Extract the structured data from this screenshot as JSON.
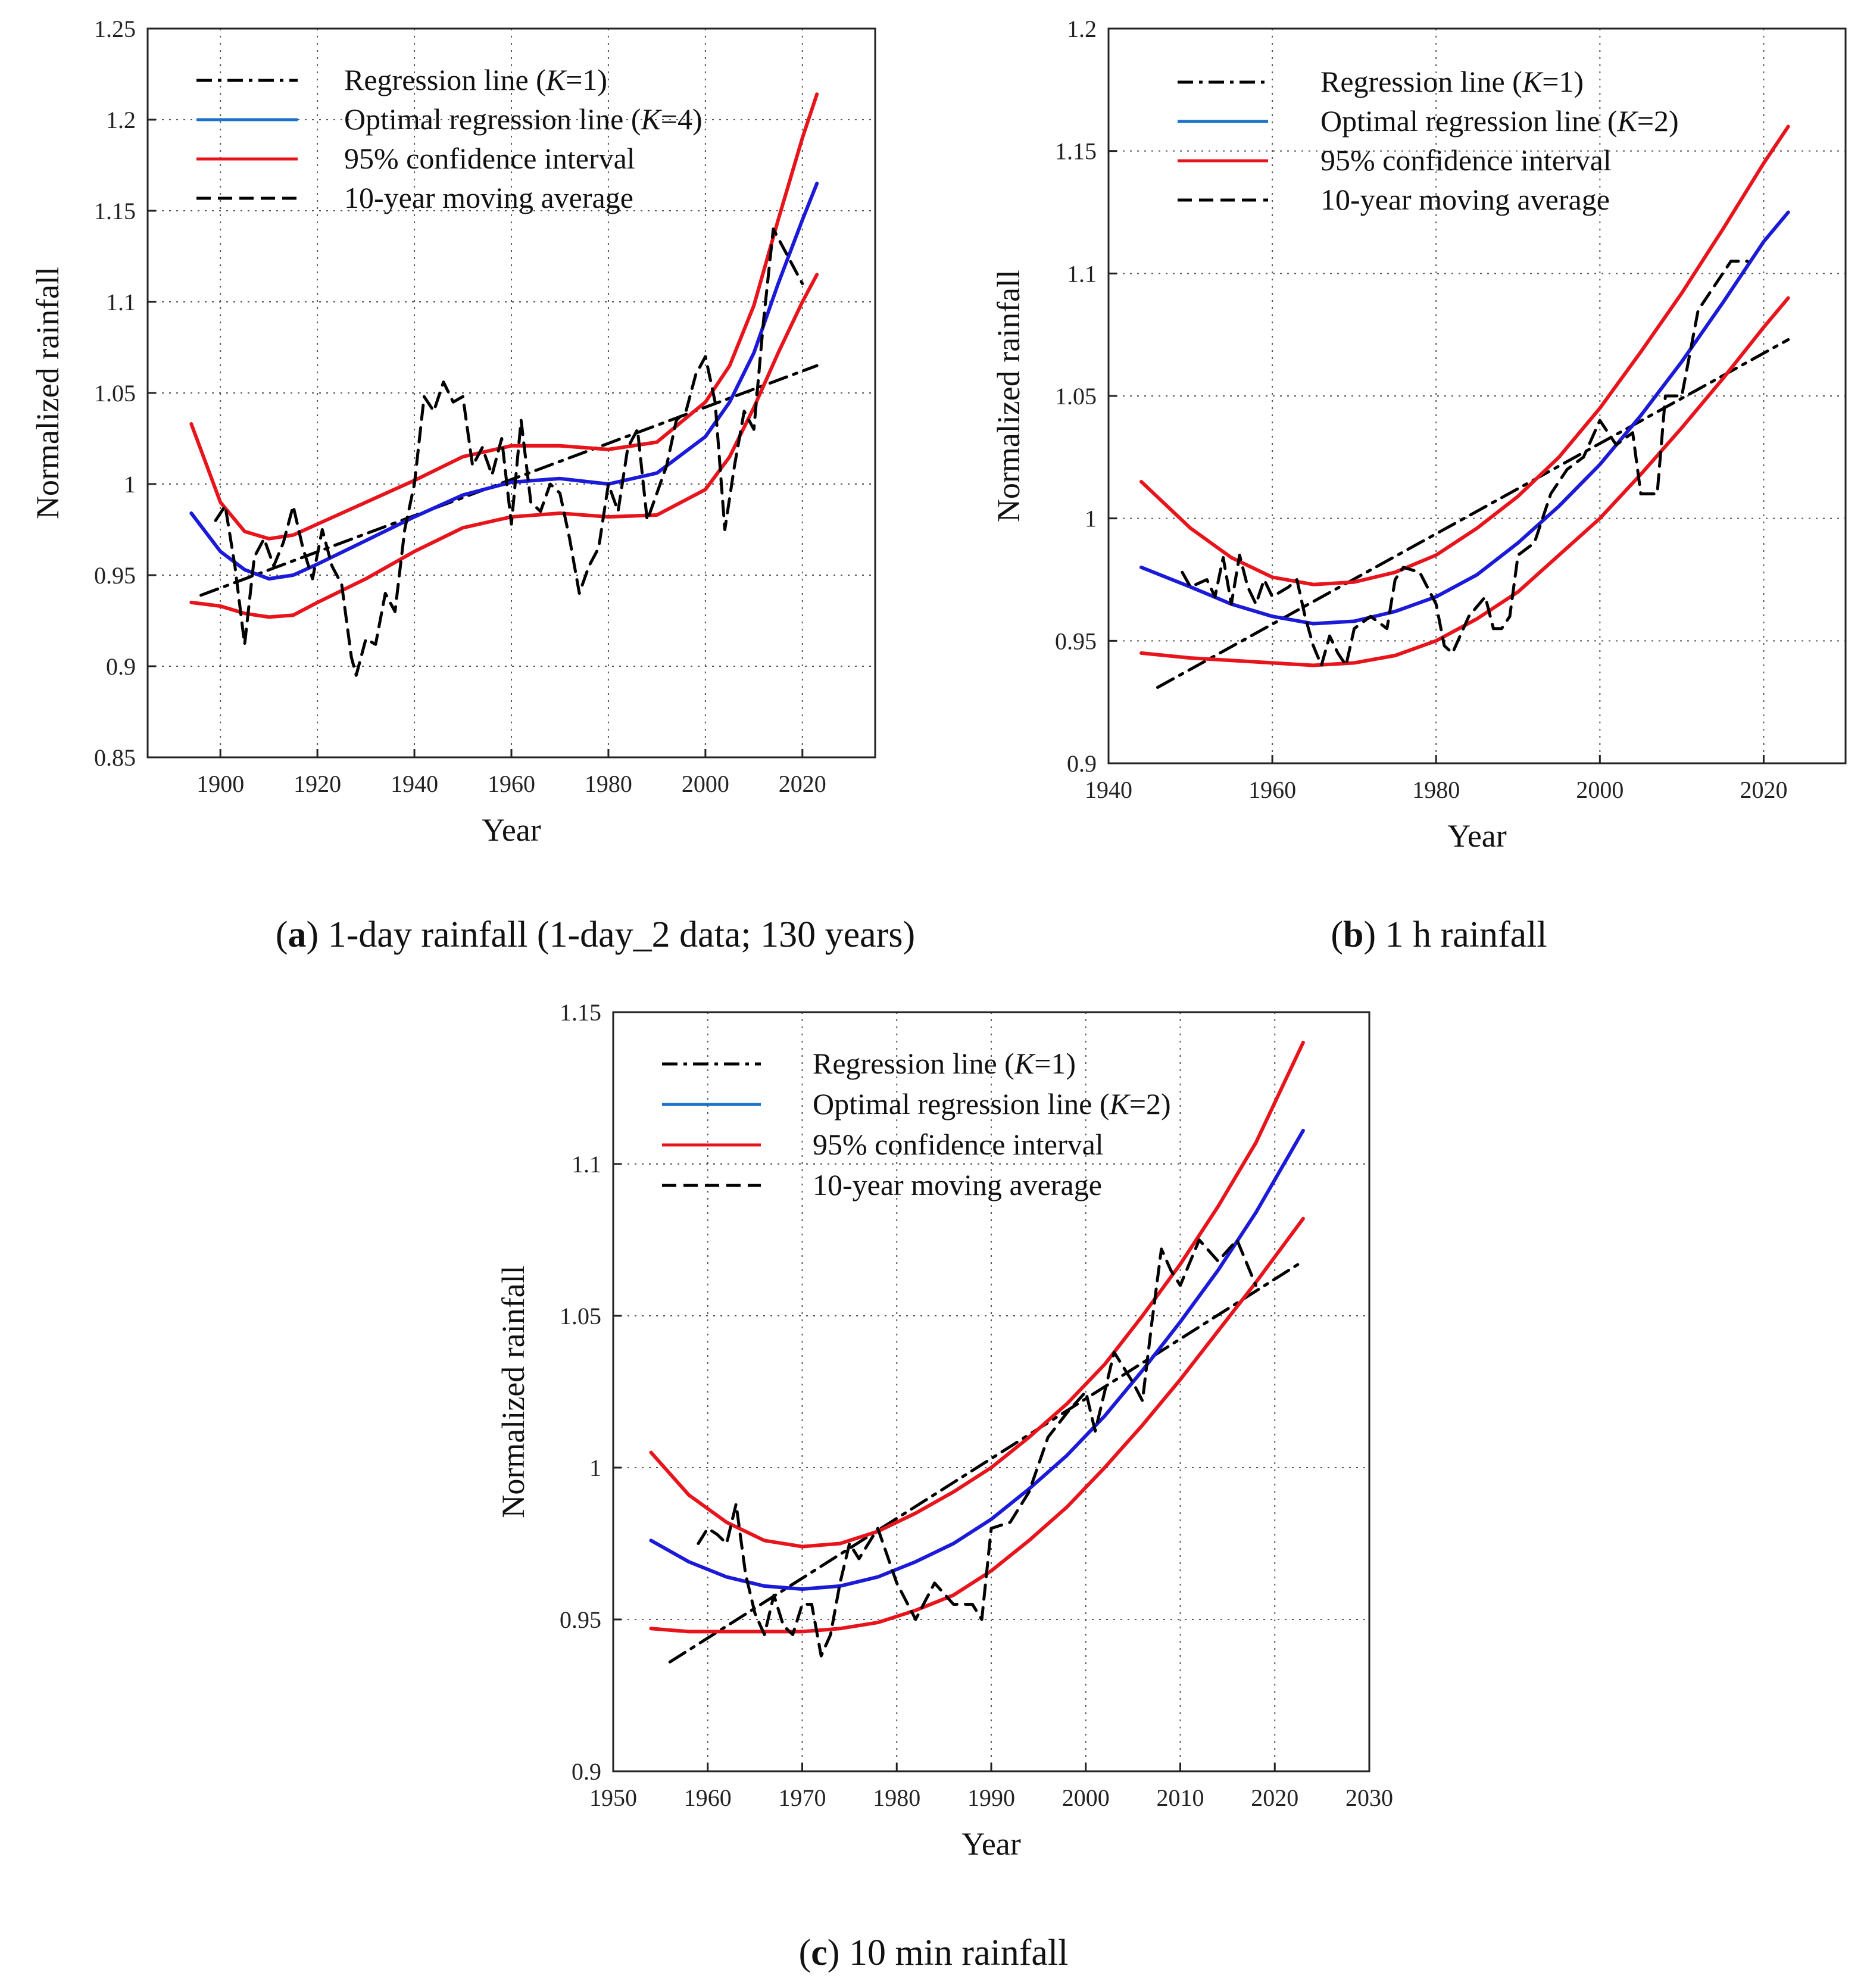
{
  "chart_data": [
    {
      "id": "a",
      "type": "line",
      "caption_letter": "a",
      "caption_rest": " 1-day rainfall (1-day_2 data; 130 years)",
      "xlabel": "Year",
      "ylabel": "Normalized rainfall",
      "xlim": [
        1885,
        2035
      ],
      "ylim": [
        0.85,
        1.25
      ],
      "xticks": [
        1900,
        1920,
        1940,
        1960,
        1980,
        2000,
        2020
      ],
      "yticks": [
        0.85,
        0.9,
        0.95,
        1,
        1.05,
        1.1,
        1.15,
        1.2,
        1.25
      ],
      "ytick_labels": [
        "0.85",
        "0.9",
        "0.95",
        "1",
        "1.05",
        "1.1",
        "1.15",
        "1.2",
        "1.25"
      ],
      "grid": true,
      "legend": [
        {
          "pre": "Regression line (",
          "k": "K",
          "post": "=1)",
          "style": "dashdot",
          "color": "#000000"
        },
        {
          "pre": "Optimal regression line (",
          "k": "K",
          "post": "=4)",
          "style": "solid",
          "color": "#1a73c8"
        },
        {
          "pre": "95% confidence interval",
          "k": "",
          "post": "",
          "style": "solid",
          "color": "#e8141c"
        },
        {
          "pre": "10-year moving average",
          "k": "",
          "post": "",
          "style": "dashed",
          "color": "#000000"
        }
      ],
      "series": [
        {
          "name": "Regression line (K=1)",
          "style": "dashdot",
          "color": "#000000",
          "x": [
            1896,
            2023
          ],
          "y": [
            0.939,
            1.065
          ]
        },
        {
          "name": "Optimal regression line (K=4)",
          "style": "solid",
          "color": "#1a1ad8",
          "x": [
            1894,
            1900,
            1905,
            1910,
            1915,
            1920,
            1930,
            1940,
            1950,
            1960,
            1970,
            1980,
            1990,
            2000,
            2005,
            2010,
            2015,
            2020,
            2023
          ],
          "y": [
            0.984,
            0.963,
            0.953,
            0.948,
            0.95,
            0.956,
            0.969,
            0.982,
            0.994,
            1.001,
            1.003,
            1.0,
            1.006,
            1.026,
            1.045,
            1.072,
            1.11,
            1.145,
            1.165
          ]
        },
        {
          "name": "95% confidence interval upper",
          "style": "solid",
          "color": "#e8141c",
          "x": [
            1894,
            1900,
            1905,
            1910,
            1915,
            1920,
            1930,
            1940,
            1950,
            1960,
            1970,
            1980,
            1990,
            2000,
            2005,
            2010,
            2015,
            2020,
            2023
          ],
          "y": [
            1.033,
            0.99,
            0.974,
            0.97,
            0.972,
            0.978,
            0.99,
            1.002,
            1.015,
            1.021,
            1.021,
            1.019,
            1.023,
            1.045,
            1.065,
            1.098,
            1.145,
            1.19,
            1.214
          ]
        },
        {
          "name": "95% confidence interval lower",
          "style": "solid",
          "color": "#e8141c",
          "x": [
            1894,
            1900,
            1905,
            1910,
            1915,
            1920,
            1930,
            1940,
            1950,
            1960,
            1970,
            1980,
            1990,
            2000,
            2005,
            2010,
            2015,
            2020,
            2023
          ],
          "y": [
            0.935,
            0.933,
            0.929,
            0.927,
            0.928,
            0.935,
            0.948,
            0.963,
            0.976,
            0.982,
            0.984,
            0.982,
            0.983,
            0.997,
            1.015,
            1.042,
            1.072,
            1.1,
            1.115
          ]
        },
        {
          "name": "10-year moving average",
          "style": "dashed",
          "color": "#000000",
          "x": [
            1899,
            1901,
            1903,
            1905,
            1907,
            1909,
            1911,
            1913,
            1915,
            1917,
            1919,
            1921,
            1923,
            1925,
            1927,
            1928,
            1930,
            1932,
            1934,
            1936,
            1938,
            1940,
            1942,
            1944,
            1946,
            1948,
            1950,
            1952,
            1954,
            1956,
            1958,
            1960,
            1962,
            1964,
            1966,
            1968,
            1970,
            1972,
            1974,
            1976,
            1978,
            1980,
            1982,
            1984,
            1986,
            1988,
            1990,
            1992,
            1994,
            1996,
            1998,
            2000,
            2002,
            2004,
            2006,
            2008,
            2010,
            2012,
            2014,
            2016,
            2018,
            2020
          ],
          "y": [
            0.98,
            0.988,
            0.955,
            0.912,
            0.96,
            0.97,
            0.955,
            0.968,
            0.988,
            0.965,
            0.948,
            0.975,
            0.955,
            0.945,
            0.905,
            0.895,
            0.915,
            0.912,
            0.94,
            0.93,
            0.975,
            1.0,
            1.048,
            1.04,
            1.056,
            1.045,
            1.048,
            1.01,
            1.02,
            1.005,
            1.025,
            0.978,
            1.035,
            0.99,
            0.985,
            1.0,
            0.995,
            0.97,
            0.94,
            0.955,
            0.965,
            1.0,
            0.985,
            1.02,
            1.03,
            0.98,
            0.995,
            1.01,
            1.035,
            1.04,
            1.06,
            1.07,
            1.045,
            0.975,
            1.01,
            1.04,
            1.03,
            1.09,
            1.14,
            1.13,
            1.12,
            1.11
          ]
        }
      ]
    },
    {
      "id": "b",
      "type": "line",
      "caption_letter": "b",
      "caption_rest": " 1 h rainfall",
      "xlabel": "Year",
      "ylabel": "Normalized rainfall",
      "xlim": [
        1940,
        2030
      ],
      "ylim": [
        0.9,
        1.2
      ],
      "xticks": [
        1940,
        1960,
        1980,
        2000,
        2020
      ],
      "yticks": [
        0.9,
        0.95,
        1,
        1.05,
        1.1,
        1.15,
        1.2
      ],
      "ytick_labels": [
        "0.9",
        "0.95",
        "1",
        "1.05",
        "1.1",
        "1.15",
        "1.2"
      ],
      "grid": true,
      "legend": [
        {
          "pre": "Regression line (",
          "k": "K",
          "post": "=1)",
          "style": "dashdot",
          "color": "#000000"
        },
        {
          "pre": "Optimal regression line (",
          "k": "K",
          "post": "=2)",
          "style": "solid",
          "color": "#1a73c8"
        },
        {
          "pre": "95% confidence interval",
          "k": "",
          "post": "",
          "style": "solid",
          "color": "#e8141c"
        },
        {
          "pre": "10-year moving average",
          "k": "",
          "post": "",
          "style": "dashed",
          "color": "#000000"
        }
      ],
      "series": [
        {
          "name": "Regression line (K=1)",
          "style": "dashdot",
          "color": "#000000",
          "x": [
            1946,
            2023
          ],
          "y": [
            0.931,
            1.073
          ]
        },
        {
          "name": "Optimal regression line (K=2)",
          "style": "solid",
          "color": "#1a1ad8",
          "x": [
            1944,
            1950,
            1955,
            1960,
            1965,
            1970,
            1975,
            1980,
            1985,
            1990,
            1995,
            2000,
            2005,
            2010,
            2015,
            2020,
            2023
          ],
          "y": [
            0.98,
            0.972,
            0.965,
            0.96,
            0.957,
            0.958,
            0.962,
            0.968,
            0.977,
            0.99,
            1.005,
            1.022,
            1.042,
            1.064,
            1.088,
            1.113,
            1.125
          ]
        },
        {
          "name": "95% confidence interval upper",
          "style": "solid",
          "color": "#e8141c",
          "x": [
            1944,
            1950,
            1955,
            1960,
            1965,
            1970,
            1975,
            1980,
            1985,
            1990,
            1995,
            2000,
            2005,
            2010,
            2015,
            2020,
            2023
          ],
          "y": [
            1.015,
            0.996,
            0.984,
            0.976,
            0.973,
            0.974,
            0.978,
            0.985,
            0.996,
            1.009,
            1.025,
            1.045,
            1.068,
            1.092,
            1.118,
            1.145,
            1.16
          ]
        },
        {
          "name": "95% confidence interval lower",
          "style": "solid",
          "color": "#e8141c",
          "x": [
            1944,
            1950,
            1955,
            1960,
            1965,
            1970,
            1975,
            1980,
            1985,
            1990,
            1995,
            2000,
            2005,
            2010,
            2015,
            2020,
            2023
          ],
          "y": [
            0.945,
            0.943,
            0.942,
            0.941,
            0.94,
            0.941,
            0.944,
            0.95,
            0.959,
            0.97,
            0.985,
            1.0,
            1.018,
            1.037,
            1.057,
            1.078,
            1.09
          ]
        },
        {
          "name": "10-year moving average",
          "style": "dashed",
          "color": "#000000",
          "x": [
            1949,
            1950,
            1952,
            1953,
            1954,
            1955,
            1956,
            1957,
            1958,
            1959,
            1960,
            1962,
            1963,
            1964,
            1965,
            1966,
            1967,
            1968,
            1969,
            1970,
            1972,
            1974,
            1975,
            1976,
            1978,
            1980,
            1981,
            1982,
            1984,
            1986,
            1987,
            1988,
            1989,
            1990,
            1992,
            1994,
            1996,
            1998,
            2000,
            2002,
            2004,
            2005,
            2007,
            2008,
            2010,
            2012,
            2014,
            2016,
            2018
          ],
          "y": [
            0.978,
            0.972,
            0.975,
            0.968,
            0.984,
            0.965,
            0.985,
            0.972,
            0.965,
            0.975,
            0.968,
            0.972,
            0.975,
            0.96,
            0.948,
            0.94,
            0.952,
            0.945,
            0.94,
            0.955,
            0.96,
            0.955,
            0.975,
            0.98,
            0.978,
            0.965,
            0.948,
            0.945,
            0.96,
            0.968,
            0.955,
            0.955,
            0.96,
            0.985,
            0.99,
            1.01,
            1.02,
            1.025,
            1.04,
            1.03,
            1.035,
            1.01,
            1.01,
            1.05,
            1.05,
            1.085,
            1.095,
            1.105,
            1.105
          ]
        }
      ]
    },
    {
      "id": "c",
      "type": "line",
      "caption_letter": "c",
      "caption_rest": " 10 min rainfall",
      "xlabel": "Year",
      "ylabel": "Normalized rainfall",
      "xlim": [
        1950,
        2030
      ],
      "ylim": [
        0.9,
        1.15
      ],
      "xticks": [
        1950,
        1960,
        1970,
        1980,
        1990,
        2000,
        2010,
        2020,
        2030
      ],
      "yticks": [
        0.9,
        0.95,
        1,
        1.05,
        1.1,
        1.15
      ],
      "ytick_labels": [
        "0.9",
        "0.95",
        "1",
        "1.05",
        "1.1",
        "1.15"
      ],
      "grid": true,
      "legend": [
        {
          "pre": "Regression line (",
          "k": "K",
          "post": "=1)",
          "style": "dashdot",
          "color": "#000000"
        },
        {
          "pre": "Optimal regression line (",
          "k": "K",
          "post": "=2)",
          "style": "solid",
          "color": "#1a73c8"
        },
        {
          "pre": "95% confidence interval",
          "k": "",
          "post": "",
          "style": "solid",
          "color": "#e8141c"
        },
        {
          "pre": "10-year moving average",
          "k": "",
          "post": "",
          "style": "dashed",
          "color": "#000000"
        }
      ],
      "series": [
        {
          "name": "Regression line (K=1)",
          "style": "dashdot",
          "color": "#000000",
          "x": [
            1956,
            2023
          ],
          "y": [
            0.936,
            1.068
          ]
        },
        {
          "name": "Optimal regression line (K=2)",
          "style": "solid",
          "color": "#1a1ad8",
          "x": [
            1954,
            1958,
            1962,
            1966,
            1970,
            1974,
            1978,
            1982,
            1986,
            1990,
            1994,
            1998,
            2002,
            2006,
            2010,
            2014,
            2018,
            2023
          ],
          "y": [
            0.976,
            0.969,
            0.964,
            0.961,
            0.96,
            0.961,
            0.964,
            0.969,
            0.975,
            0.983,
            0.993,
            1.004,
            1.017,
            1.032,
            1.048,
            1.065,
            1.084,
            1.111
          ]
        },
        {
          "name": "95% confidence interval upper",
          "style": "solid",
          "color": "#e8141c",
          "x": [
            1954,
            1958,
            1962,
            1966,
            1970,
            1974,
            1978,
            1982,
            1986,
            1990,
            1994,
            1998,
            2002,
            2006,
            2010,
            2014,
            2018,
            2023
          ],
          "y": [
            1.005,
            0.991,
            0.982,
            0.976,
            0.974,
            0.975,
            0.979,
            0.985,
            0.992,
            1.0,
            1.01,
            1.021,
            1.034,
            1.05,
            1.067,
            1.086,
            1.107,
            1.14
          ]
        },
        {
          "name": "95% confidence interval lower",
          "style": "solid",
          "color": "#e8141c",
          "x": [
            1954,
            1958,
            1962,
            1966,
            1970,
            1974,
            1978,
            1982,
            1986,
            1990,
            1994,
            1998,
            2002,
            2006,
            2010,
            2014,
            2018,
            2023
          ],
          "y": [
            0.947,
            0.946,
            0.946,
            0.946,
            0.946,
            0.947,
            0.949,
            0.953,
            0.958,
            0.966,
            0.976,
            0.987,
            1.0,
            1.014,
            1.029,
            1.045,
            1.061,
            1.082
          ]
        },
        {
          "name": "10-year moving average",
          "style": "dashed",
          "color": "#000000",
          "x": [
            1959,
            1960,
            1961,
            1962,
            1963,
            1964,
            1965,
            1966,
            1967,
            1968,
            1969,
            1970,
            1971,
            1972,
            1973,
            1974,
            1975,
            1976,
            1978,
            1980,
            1982,
            1984,
            1986,
            1988,
            1989,
            1990,
            1992,
            1994,
            1996,
            1998,
            2000,
            2001,
            2003,
            2005,
            2006,
            2007,
            2008,
            2009,
            2010,
            2012,
            2014,
            2016,
            2018
          ],
          "y": [
            0.975,
            0.98,
            0.978,
            0.975,
            0.988,
            0.965,
            0.952,
            0.945,
            0.958,
            0.948,
            0.945,
            0.955,
            0.955,
            0.938,
            0.945,
            0.962,
            0.975,
            0.97,
            0.98,
            0.962,
            0.95,
            0.962,
            0.955,
            0.955,
            0.95,
            0.98,
            0.982,
            0.992,
            1.01,
            1.018,
            1.025,
            1.012,
            1.038,
            1.028,
            1.022,
            1.048,
            1.072,
            1.065,
            1.06,
            1.075,
            1.068,
            1.075,
            1.06
          ]
        }
      ]
    }
  ]
}
